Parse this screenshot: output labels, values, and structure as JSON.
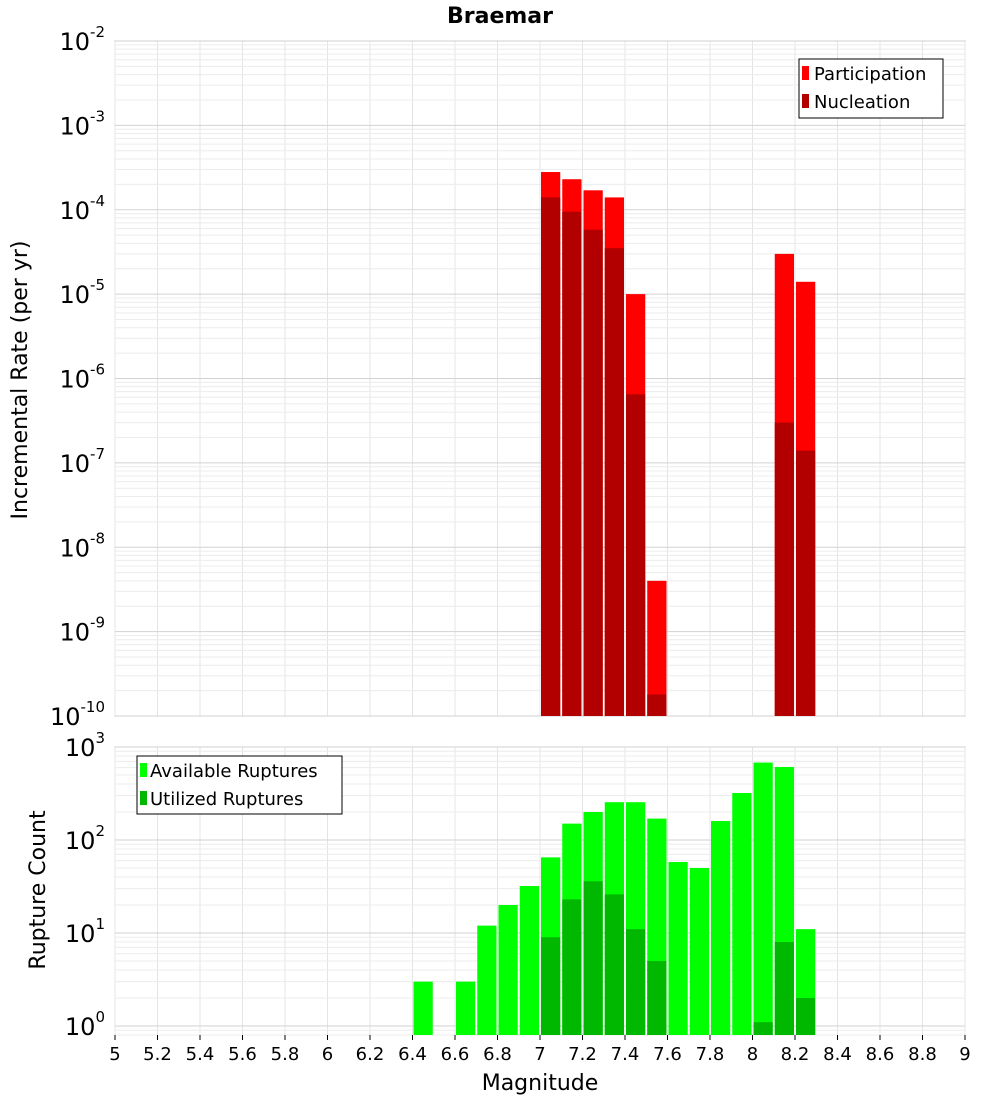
{
  "chart_data": [
    {
      "type": "bar",
      "title": "Braemar",
      "xlabel": "",
      "ylabel": "Incremental Rate (per yr)",
      "yscale": "log",
      "ylim": [
        1e-10,
        0.01
      ],
      "xlim": [
        5,
        9
      ],
      "bin_width": 0.1,
      "ytick_labels": [
        {
          "base": "10",
          "exp": "-2",
          "value": 0.01
        },
        {
          "base": "10",
          "exp": "-3",
          "value": 0.001
        },
        {
          "base": "10",
          "exp": "-4",
          "value": 0.0001
        },
        {
          "base": "10",
          "exp": "-5",
          "value": 1e-05
        },
        {
          "base": "10",
          "exp": "-6",
          "value": 1e-06
        },
        {
          "base": "10",
          "exp": "-7",
          "value": 1e-07
        },
        {
          "base": "10",
          "exp": "-8",
          "value": 1e-08
        },
        {
          "base": "10",
          "exp": "-9",
          "value": 1e-09
        },
        {
          "base": "10",
          "exp": "-10",
          "value": 1e-10
        }
      ],
      "legend_position": "top-right",
      "series": [
        {
          "name": "Participation",
          "color": "#ff0000",
          "x": [
            7.05,
            7.15,
            7.25,
            7.35,
            7.45,
            7.55,
            8.15,
            8.25
          ],
          "values": [
            0.00028,
            0.00023,
            0.00017,
            0.00014,
            1e-05,
            4e-09,
            3e-05,
            1.4e-05
          ]
        },
        {
          "name": "Nucleation",
          "color": "#b20000",
          "x": [
            7.05,
            7.15,
            7.25,
            7.35,
            7.45,
            7.55,
            8.15,
            8.25
          ],
          "values": [
            0.00014,
            9.5e-05,
            5.8e-05,
            3.5e-05,
            6.5e-07,
            1.8e-10,
            3e-07,
            1.4e-07
          ]
        }
      ]
    },
    {
      "type": "bar",
      "title": "",
      "xlabel": "Magnitude",
      "ylabel": "Rupture Count",
      "yscale": "log",
      "ylim": [
        0.8,
        1000
      ],
      "xlim": [
        5,
        9
      ],
      "bin_width": 0.1,
      "ytick_labels": [
        {
          "base": "10",
          "exp": "3",
          "value": 1000
        },
        {
          "base": "10",
          "exp": "2",
          "value": 100
        },
        {
          "base": "10",
          "exp": "1",
          "value": 10
        },
        {
          "base": "10",
          "exp": "0",
          "value": 1
        }
      ],
      "xtick_labels": [
        "5",
        "5.2",
        "5.4",
        "5.6",
        "5.8",
        "6",
        "6.2",
        "6.4",
        "6.6",
        "6.8",
        "7",
        "7.2",
        "7.4",
        "7.6",
        "7.8",
        "8",
        "8.2",
        "8.4",
        "8.6",
        "8.8",
        "9"
      ],
      "legend_position": "top-left",
      "series": [
        {
          "name": "Available Ruptures",
          "color": "#00ff00",
          "x": [
            6.45,
            6.65,
            6.75,
            6.85,
            6.95,
            7.05,
            7.15,
            7.25,
            7.35,
            7.45,
            7.55,
            7.65,
            7.75,
            7.85,
            7.95,
            8.05,
            8.15,
            8.25
          ],
          "values": [
            3,
            3,
            12,
            20,
            32,
            65,
            150,
            200,
            255,
            255,
            170,
            58,
            50,
            160,
            320,
            680,
            610,
            11
          ]
        },
        {
          "name": "Utilized Ruptures",
          "color": "#00b800",
          "x": [
            7.05,
            7.15,
            7.25,
            7.35,
            7.45,
            7.55,
            8.05,
            8.15,
            8.25
          ],
          "values": [
            9,
            23,
            36,
            26,
            11,
            5,
            1.1,
            8,
            2
          ]
        }
      ]
    }
  ]
}
